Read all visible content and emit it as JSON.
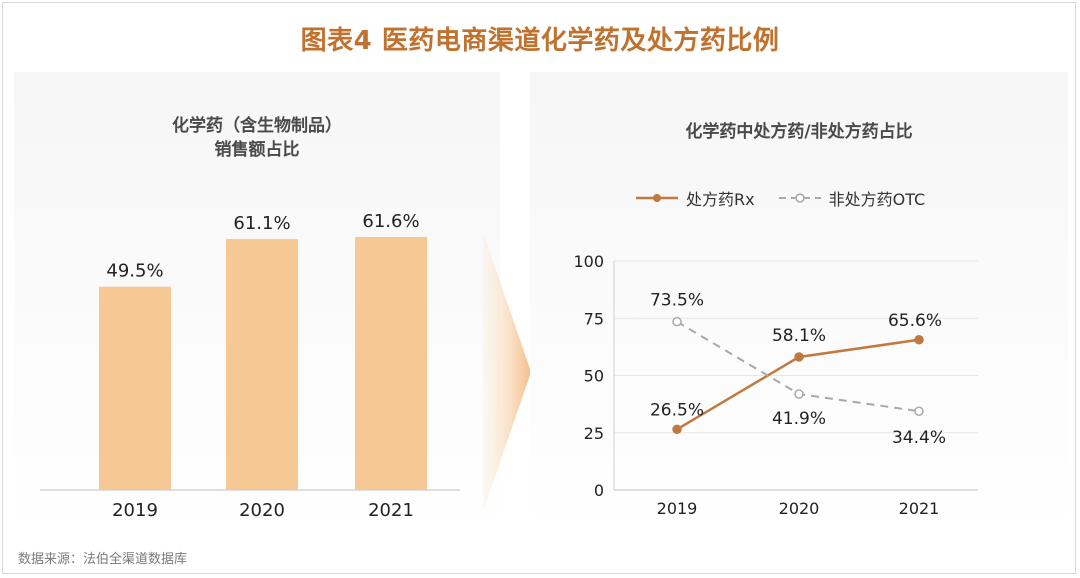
{
  "title": "图表4 医药电商渠道化学药及处方药比例",
  "source": "数据来源：法伯全渠道数据库",
  "colors": {
    "title": "#c0712e",
    "bar": "#f6c994",
    "rx": "#c07a3f",
    "otc": "#a8a8a8",
    "axis": "#d9d9d9",
    "grid": "#e6e6e6"
  },
  "chart_data": [
    {
      "type": "bar",
      "title": "化学药（含生物制品）",
      "subtitle": "销售额占比",
      "categories": [
        "2019",
        "2020",
        "2021"
      ],
      "values": [
        49.5,
        61.1,
        61.6
      ],
      "data_labels": [
        "49.5%",
        "61.1%",
        "61.6%"
      ],
      "ylim": [
        0,
        70
      ],
      "grid": false
    },
    {
      "type": "line",
      "title": "化学药中处方药/非处方药占比",
      "categories": [
        "2019",
        "2020",
        "2021"
      ],
      "yticks": [
        "0",
        "25",
        "50",
        "75",
        "100"
      ],
      "ylim": [
        0,
        100
      ],
      "grid": true,
      "legend_position": "top",
      "series": [
        {
          "name": "处方药Rx",
          "values": [
            26.5,
            58.1,
            65.6
          ],
          "labels": [
            "26.5%",
            "58.1%",
            "65.6%"
          ],
          "style": "solid"
        },
        {
          "name": "非处方药OTC",
          "values": [
            73.5,
            41.9,
            34.4
          ],
          "labels": [
            "73.5%",
            "41.9%",
            "34.4%"
          ],
          "style": "dashed"
        }
      ]
    }
  ]
}
